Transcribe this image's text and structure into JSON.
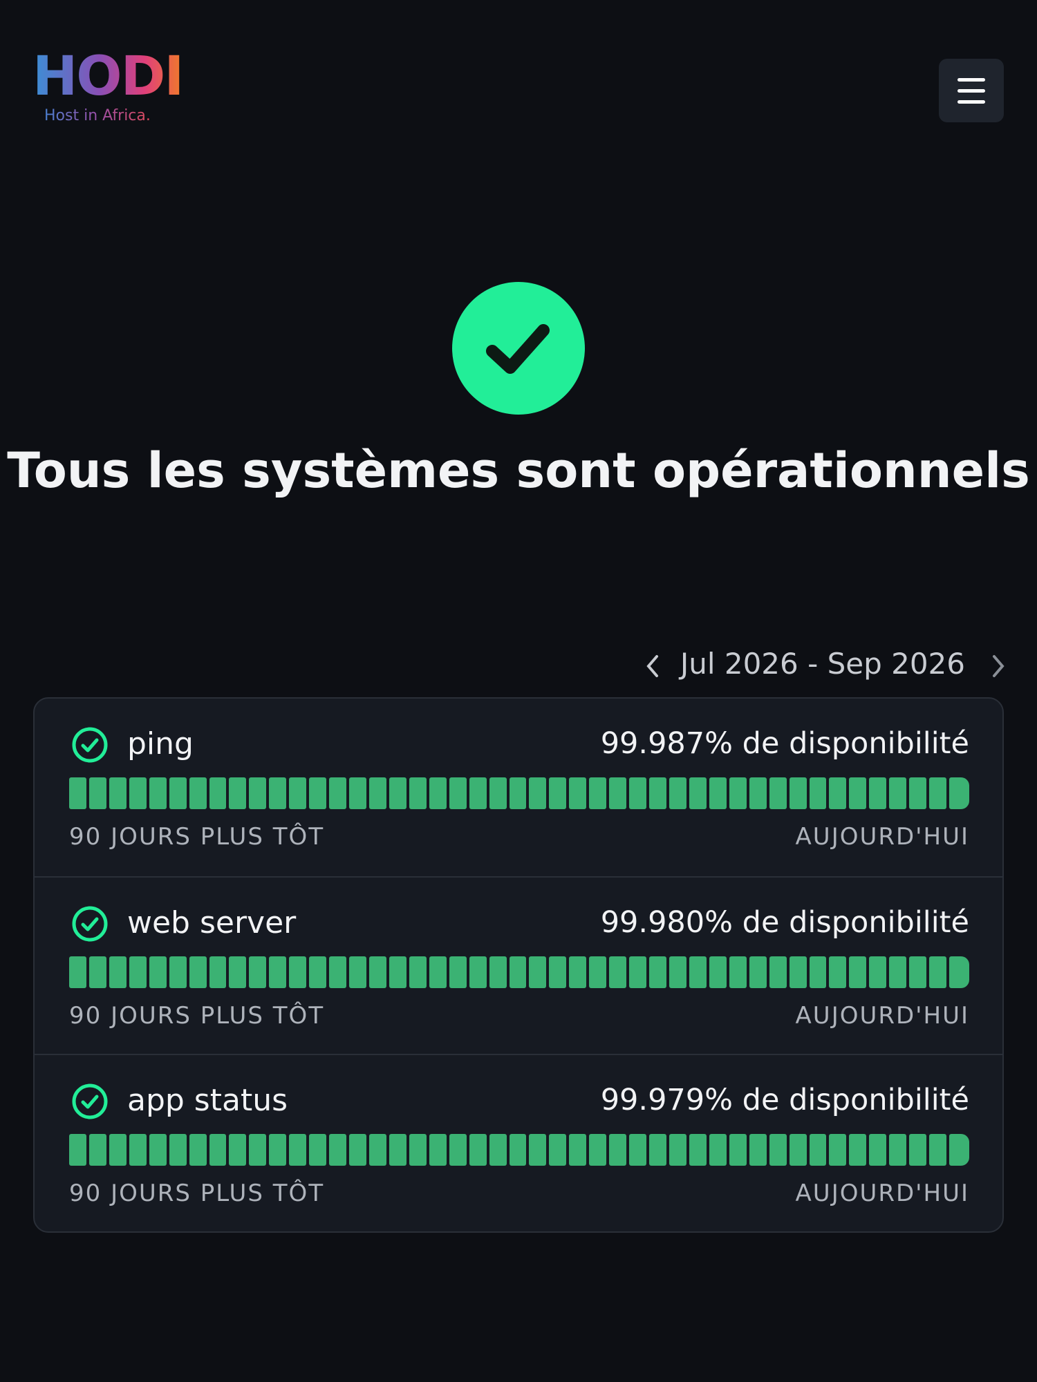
{
  "header": {
    "logo": "HODI",
    "tagline": "Host in Africa."
  },
  "status": {
    "title": "Tous les systèmes sont opérationnels"
  },
  "period": {
    "label": "Jul 2026 - Sep 2026"
  },
  "services": [
    {
      "name": "ping",
      "uptime": "99.987% de disponibilité",
      "start_label": "90 JOURS PLUS TÔT",
      "end_label": "AUJOURD'HUI"
    },
    {
      "name": "web server",
      "uptime": "99.980% de disponibilité",
      "start_label": "90 JOURS PLUS TÔT",
      "end_label": "AUJOURD'HUI"
    },
    {
      "name": "app status",
      "uptime": "99.979% de disponibilité",
      "start_label": "90 JOURS PLUS TÔT",
      "end_label": "AUJOURD'HUI"
    }
  ]
}
